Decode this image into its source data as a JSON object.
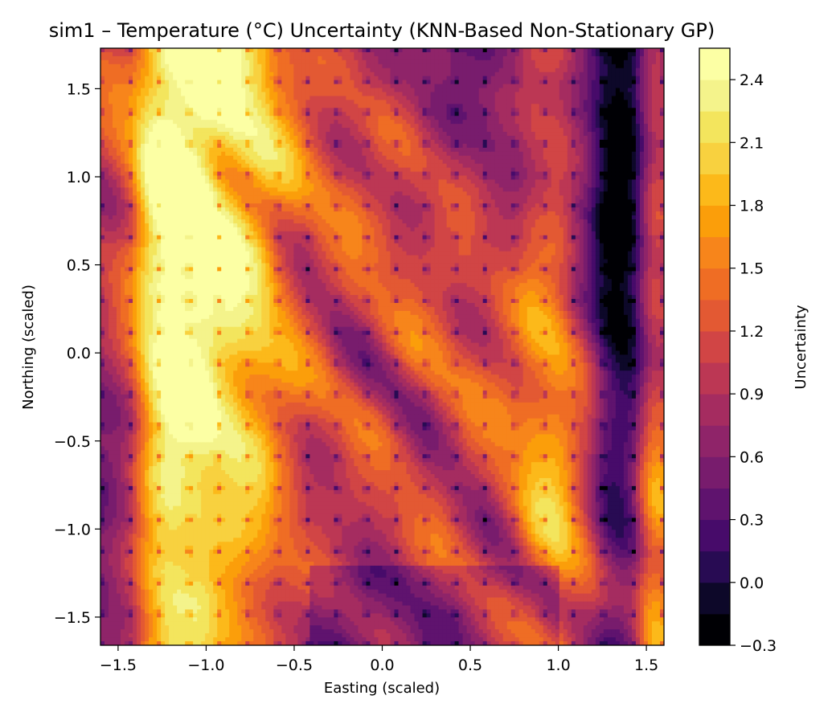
{
  "chart_data": {
    "type": "heatmap",
    "title": "sim1 – Temperature (°C) Uncertainty (KNN-Based Non-Stationary GP)",
    "xlabel": "Easting (scaled)",
    "ylabel": "Northing (scaled)",
    "xlim": [
      -1.6,
      1.6
    ],
    "ylim": [
      -1.66,
      1.73
    ],
    "xticks": [
      -1.5,
      -1.0,
      -0.5,
      0.0,
      0.5,
      1.0,
      1.5
    ],
    "xtick_labels": [
      "−1.5",
      "−1.0",
      "−0.5",
      "0.0",
      "0.5",
      "1.0",
      "1.5"
    ],
    "yticks": [
      -1.5,
      -1.0,
      -0.5,
      0.0,
      0.5,
      1.0,
      1.5
    ],
    "ytick_labels": [
      "−1.5",
      "−1.0",
      "−0.5",
      "0.0",
      "0.5",
      "1.0",
      "1.5"
    ],
    "colorbar": {
      "label": "Uncertainty",
      "colormap": "inferno",
      "range": [
        -0.3,
        2.55
      ],
      "levels": [
        -0.3,
        -0.15,
        0.0,
        0.15,
        0.3,
        0.45,
        0.6,
        0.75,
        0.9,
        1.05,
        1.2,
        1.35,
        1.5,
        1.65,
        1.8,
        1.95,
        2.1,
        2.25,
        2.4,
        2.55
      ],
      "level_colors": [
        "#000004",
        "#0d0829",
        "#280b53",
        "#470b6a",
        "#5f136e",
        "#781c6d",
        "#8f2469",
        "#a52c60",
        "#bc3754",
        "#d14545",
        "#e35933",
        "#ef6d24",
        "#f7851b",
        "#fb9e0a",
        "#fcb91a",
        "#f8d13f",
        "#f3e55d",
        "#f4f38b",
        "#fcffa4"
      ],
      "ticks": [
        -0.3,
        0.0,
        0.3,
        0.6,
        0.9,
        1.2,
        1.5,
        1.8,
        2.1,
        2.4
      ],
      "tick_labels": [
        "−0.3",
        "0.0",
        "0.3",
        "0.6",
        "0.9",
        "1.2",
        "1.5",
        "1.8",
        "2.1",
        "2.4"
      ]
    },
    "field_description": "filled contour field of predictive uncertainty over scaled easting/northing; high-uncertainty (orange) vertical bands near x=-1.25 and x=-0.85, diagonal orange bands from upper-left to lower-right, low-uncertainty (dark) band near x=1.35, lattice of dark minima at observation locations",
    "bands": [
      {
        "kind": "vertical",
        "x": -1.25,
        "width": 0.12,
        "amp": 1.3
      },
      {
        "kind": "vertical",
        "x": -0.85,
        "width": 0.22,
        "amp": 1.1
      },
      {
        "kind": "vertical",
        "x": -1.05,
        "width": 0.1,
        "amp": 0.5
      },
      {
        "kind": "vertical",
        "x": 1.35,
        "width": 0.12,
        "amp": -0.9
      },
      {
        "kind": "vertical",
        "x": 1.55,
        "width": 0.08,
        "amp": 0.7
      },
      {
        "kind": "vertical",
        "x": 0.95,
        "width": 0.14,
        "amp": 0.6
      },
      {
        "kind": "diagonal",
        "offset": 0.25,
        "width": 0.2,
        "amp": 1.0
      },
      {
        "kind": "diagonal",
        "offset": -0.45,
        "width": 0.18,
        "amp": 0.9
      },
      {
        "kind": "diagonal",
        "offset": 1.0,
        "width": 0.15,
        "amp": 0.7
      },
      {
        "kind": "diagonal",
        "offset": -1.25,
        "width": 0.15,
        "amp": 0.6
      },
      {
        "kind": "diagonal",
        "offset": -0.1,
        "width": 0.12,
        "amp": -0.6
      }
    ]
  }
}
